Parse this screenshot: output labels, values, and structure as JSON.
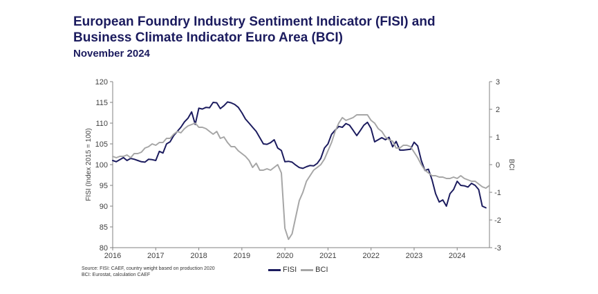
{
  "header": {
    "title_line1": "European Foundry Industry Sentiment Indicator (FISI) and",
    "title_line2": "Business Climate Indicator Euro Area (BCI)",
    "subtitle": "November 2024"
  },
  "source": {
    "line1": "Source: FISI: CAEF, country weight based on production 2020",
    "line2": "BCI: Eurostat, calculation CAEF"
  },
  "colors": {
    "fisi": "#1b1b5e",
    "bci": "#a6a6a6",
    "axis": "#808080"
  },
  "chart_data": {
    "type": "line",
    "ylabel": "FISI (Index 2015 = 100)",
    "y2label": "BCI",
    "ylim": [
      80,
      120
    ],
    "y2lim": [
      -3,
      3
    ],
    "yticks": [
      "80",
      "85",
      "90",
      "95",
      "100",
      "105",
      "110",
      "115",
      "120"
    ],
    "y2ticks": [
      "-3",
      "-2",
      "-1",
      "0",
      "1",
      "2",
      "3"
    ],
    "xlim": [
      2016.0,
      2024.75
    ],
    "xticks": [
      "2016",
      "2017",
      "2018",
      "2019",
      "2020",
      "2021",
      "2022",
      "2023",
      "2024"
    ],
    "grid": false,
    "legend": "bottom",
    "series": [
      {
        "name": "FISI",
        "axis": "left",
        "color": "#1b1b5e",
        "x": [
          2016.0,
          2016.083,
          2016.167,
          2016.25,
          2016.333,
          2016.417,
          2016.5,
          2016.583,
          2016.667,
          2016.75,
          2016.833,
          2016.917,
          2017.0,
          2017.083,
          2017.167,
          2017.25,
          2017.333,
          2017.417,
          2017.5,
          2017.583,
          2017.667,
          2017.75,
          2017.833,
          2017.917,
          2018.0,
          2018.083,
          2018.167,
          2018.25,
          2018.333,
          2018.417,
          2018.5,
          2018.583,
          2018.667,
          2018.75,
          2018.833,
          2018.917,
          2019.0,
          2019.083,
          2019.167,
          2019.25,
          2019.333,
          2019.417,
          2019.5,
          2019.583,
          2019.667,
          2019.75,
          2019.833,
          2019.917,
          2020.0,
          2020.083,
          2020.167,
          2020.25,
          2020.333,
          2020.417,
          2020.5,
          2020.583,
          2020.667,
          2020.75,
          2020.833,
          2020.917,
          2021.0,
          2021.083,
          2021.167,
          2021.25,
          2021.333,
          2021.417,
          2021.5,
          2021.583,
          2021.667,
          2021.75,
          2021.833,
          2021.917,
          2022.0,
          2022.083,
          2022.167,
          2022.25,
          2022.333,
          2022.417,
          2022.5,
          2022.583,
          2022.667,
          2022.75,
          2022.833,
          2022.917,
          2023.0,
          2023.083,
          2023.167,
          2023.25,
          2023.333,
          2023.417,
          2023.5,
          2023.583,
          2023.667,
          2023.75,
          2023.833,
          2023.917,
          2024.0,
          2024.083,
          2024.167,
          2024.25,
          2024.333,
          2024.417,
          2024.5,
          2024.583,
          2024.667
        ],
        "values": [
          101.0,
          100.7,
          101.2,
          101.7,
          101.0,
          101.5,
          101.3,
          101.0,
          100.7,
          100.6,
          101.3,
          101.2,
          101.0,
          103.2,
          102.8,
          105.0,
          105.5,
          107.0,
          108.0,
          109.0,
          110.3,
          111.2,
          112.7,
          109.7,
          113.6,
          113.4,
          113.8,
          113.7,
          115.0,
          114.9,
          113.5,
          114.2,
          115.1,
          114.9,
          114.5,
          113.8,
          112.5,
          111.0,
          110.0,
          109.0,
          108.0,
          106.5,
          105.0,
          104.9,
          105.3,
          106.0,
          104.0,
          103.4,
          100.7,
          100.8,
          100.6,
          99.9,
          99.3,
          99.1,
          99.5,
          99.8,
          99.7,
          100.3,
          101.5,
          104.0,
          105.0,
          107.3,
          108.3,
          109.2,
          109.0,
          109.9,
          109.5,
          108.3,
          107.0,
          108.2,
          109.5,
          110.2,
          108.7,
          105.5,
          106.0,
          106.5,
          106.0,
          106.6,
          104.3,
          105.6,
          103.5,
          103.5,
          103.6,
          103.7,
          105.4,
          104.5,
          101.0,
          98.6,
          98.9,
          96.3,
          93.0,
          91.0,
          91.5,
          90.0,
          93.0,
          94.0,
          96.0,
          95.0,
          94.9,
          94.6,
          95.5,
          95.0,
          94.0,
          90.0,
          89.6
        ]
      },
      {
        "name": "BCI",
        "axis": "right",
        "color": "#a6a6a6",
        "x": [
          2016.0,
          2016.083,
          2016.167,
          2016.25,
          2016.333,
          2016.417,
          2016.5,
          2016.583,
          2016.667,
          2016.75,
          2016.833,
          2016.917,
          2017.0,
          2017.083,
          2017.167,
          2017.25,
          2017.333,
          2017.417,
          2017.5,
          2017.583,
          2017.667,
          2017.75,
          2017.833,
          2017.917,
          2018.0,
          2018.083,
          2018.167,
          2018.25,
          2018.333,
          2018.417,
          2018.5,
          2018.583,
          2018.667,
          2018.75,
          2018.833,
          2018.917,
          2019.0,
          2019.083,
          2019.167,
          2019.25,
          2019.333,
          2019.417,
          2019.5,
          2019.583,
          2019.667,
          2019.75,
          2019.833,
          2019.917,
          2020.0,
          2020.083,
          2020.167,
          2020.25,
          2020.333,
          2020.417,
          2020.5,
          2020.583,
          2020.667,
          2020.75,
          2020.833,
          2020.917,
          2021.0,
          2021.083,
          2021.167,
          2021.25,
          2021.333,
          2021.417,
          2021.5,
          2021.583,
          2021.667,
          2021.75,
          2021.833,
          2021.917,
          2022.0,
          2022.083,
          2022.167,
          2022.25,
          2022.333,
          2022.417,
          2022.5,
          2022.583,
          2022.667,
          2022.75,
          2022.833,
          2022.917,
          2023.0,
          2023.083,
          2023.167,
          2023.25,
          2023.333,
          2023.417,
          2023.5,
          2023.583,
          2023.667,
          2023.75,
          2023.833,
          2023.917,
          2024.0,
          2024.083,
          2024.167,
          2024.25,
          2024.333,
          2024.417,
          2024.5,
          2024.583,
          2024.667,
          2024.75
        ],
        "values": [
          0.3,
          0.25,
          0.3,
          0.3,
          0.35,
          0.25,
          0.4,
          0.4,
          0.45,
          0.6,
          0.65,
          0.75,
          0.7,
          0.8,
          0.8,
          0.95,
          0.95,
          1.1,
          1.2,
          1.15,
          1.3,
          1.4,
          1.45,
          1.5,
          1.35,
          1.35,
          1.3,
          1.2,
          1.1,
          1.2,
          0.95,
          1.0,
          0.8,
          0.65,
          0.65,
          0.5,
          0.4,
          0.3,
          0.15,
          -0.1,
          0.05,
          -0.2,
          -0.2,
          -0.15,
          -0.2,
          -0.1,
          0.0,
          -0.3,
          -2.3,
          -2.7,
          -2.5,
          -1.9,
          -1.3,
          -1.0,
          -0.6,
          -0.4,
          -0.2,
          -0.1,
          0.0,
          0.2,
          0.5,
          0.8,
          1.2,
          1.5,
          1.7,
          1.6,
          1.65,
          1.7,
          1.8,
          1.8,
          1.8,
          1.8,
          1.6,
          1.5,
          1.3,
          1.2,
          1.0,
          0.9,
          0.85,
          0.6,
          0.6,
          0.7,
          0.7,
          0.65,
          0.45,
          0.25,
          0.0,
          -0.2,
          -0.3,
          -0.4,
          -0.4,
          -0.45,
          -0.45,
          -0.5,
          -0.5,
          -0.45,
          -0.5,
          -0.4,
          -0.5,
          -0.55,
          -0.6,
          -0.6,
          -0.7,
          -0.8,
          -0.85,
          -0.75
        ]
      }
    ]
  }
}
